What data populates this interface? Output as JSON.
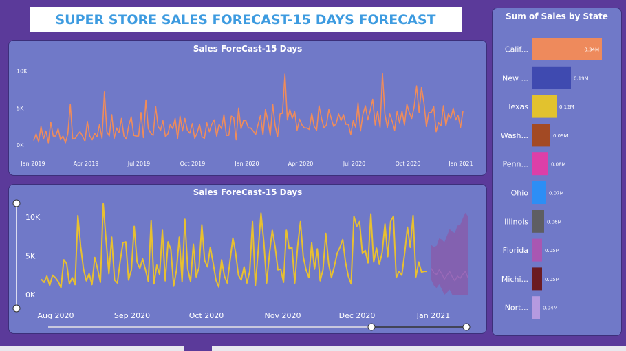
{
  "page_title": "SUPER STORE SALES FORECAST-15 DAYS FORECAST",
  "colors": {
    "background": "#5b3a9a",
    "panel": "#7079c8",
    "title_text": "#3d9be0",
    "line_top": "#f08c5a",
    "line_bottom": "#e8c030",
    "forecast_band": "#8a5aa8"
  },
  "chart_data": [
    {
      "type": "line",
      "title": "Sales ForeCast-15 Days",
      "xlabel": "",
      "ylabel": "",
      "x_ticks": [
        "Jan 2019",
        "Apr 2019",
        "Jul 2019",
        "Oct 2019",
        "Jan 2020",
        "Apr 2020",
        "Jul 2020",
        "Oct 2020",
        "Jan 2021"
      ],
      "y_ticks": [
        "0K",
        "5K",
        "10K"
      ],
      "ylim": [
        0,
        11000
      ],
      "series": [
        {
          "values": [
            600,
            1500,
            400,
            2500,
            800,
            1900,
            300,
            3100,
            1200,
            1200,
            2200,
            700,
            1200,
            300,
            1500,
            5500,
            800,
            900,
            1400,
            1800,
            1200,
            500,
            3200,
            1200,
            700,
            1600,
            1100,
            2800,
            900,
            7200,
            1800,
            1200,
            4100,
            900,
            2300,
            1700,
            3600,
            1200,
            800,
            2700,
            3800,
            1300,
            1200,
            1200,
            4400,
            1000,
            6100,
            2200,
            1600,
            1300,
            5200,
            2500,
            2000,
            3300,
            1100,
            1500,
            2800,
            2200,
            3600,
            900,
            3900,
            1900,
            3600,
            2000,
            1600,
            2900,
            900,
            1600,
            2800,
            1100,
            900,
            3000,
            1800,
            2800,
            3400,
            1200,
            2800,
            2200,
            4100,
            1300,
            1300,
            3900,
            3700,
            700,
            5000,
            2200,
            3300,
            3300,
            2300,
            2300,
            1900,
            1400,
            2800,
            4000,
            1400,
            4800,
            3300,
            1300,
            5500,
            2600,
            1100,
            4200,
            4300,
            9600,
            3400,
            4800,
            3600,
            4500,
            2000,
            3500,
            2700,
            2300,
            2300,
            2100,
            4300,
            2500,
            2000,
            5300,
            3600,
            2300,
            2700,
            4800,
            3600,
            2500,
            2900,
            4200,
            3300,
            4100,
            2800,
            2800,
            1400,
            3300,
            2400,
            5700,
            1900,
            4200,
            5300,
            3400,
            4700,
            6200,
            2700,
            4600,
            2400,
            9700,
            4200,
            2400,
            4200,
            3200,
            2000,
            4600,
            3000,
            4600,
            2700,
            5500,
            4400,
            3600,
            5200,
            8000,
            4400,
            7800,
            5700,
            2500,
            4400,
            4400,
            5200,
            1800,
            3000,
            2600,
            5300,
            2600,
            4200,
            3600,
            5000,
            3400,
            4000,
            2400,
            4600
          ]
        }
      ]
    },
    {
      "type": "line",
      "title": "Sales ForeCast-15 Days",
      "xlabel": "",
      "ylabel": "",
      "x_ticks": [
        "Aug 2020",
        "Sep 2020",
        "Oct 2020",
        "Nov 2020",
        "Dec 2020",
        "Jan 2021"
      ],
      "y_ticks": [
        "0K",
        "5K",
        "10K"
      ],
      "ylim": [
        0,
        11500
      ],
      "series": [
        {
          "values": [
            2000,
            1600,
            2400,
            1200,
            2500,
            2200,
            1700,
            900,
            4500,
            4000,
            1400,
            2200,
            1300,
            10200,
            6200,
            3300,
            1800,
            2700,
            1300,
            4800,
            3300,
            1600,
            11700,
            7000,
            2700,
            7400,
            1900,
            1500,
            4300,
            6700,
            6800,
            1900,
            3200,
            8800,
            4200,
            3400,
            4600,
            3200,
            1700,
            9500,
            1400,
            3800,
            2600,
            8300,
            1800,
            6800,
            5800,
            1100,
            3200,
            7400,
            1700,
            9700,
            3300,
            1700,
            6500,
            2300,
            3500,
            9000,
            4400,
            3600,
            6100,
            4100,
            1900,
            1000,
            4500,
            2400,
            1500,
            4400,
            7300,
            5400,
            2500,
            1900,
            3600,
            1500,
            3000,
            9400,
            1200,
            5700,
            10500,
            6800,
            1500,
            5300,
            8300,
            6200,
            3200,
            3300,
            1600,
            8300,
            5900,
            6100,
            1500,
            6200,
            9400,
            4900,
            3200,
            2200,
            6700,
            3300,
            5900,
            1800,
            3200,
            7900,
            4000,
            2200,
            3600,
            5300,
            6100,
            7100,
            4200,
            2400,
            1400,
            10100,
            8800,
            9400,
            5300,
            5700,
            4100,
            10400,
            4200,
            6000,
            3900,
            5400,
            9100,
            4900,
            9400,
            10100,
            2200,
            3000,
            2500,
            5300,
            8700,
            6100,
            10200,
            2300,
            4200,
            2900,
            3000,
            3000
          ]
        },
        {
          "values": [
            3400,
            2800,
            2600,
            3200,
            2700,
            2000,
            2500,
            3000,
            2300,
            1800,
            2400,
            2100,
            2600,
            3000,
            2200
          ]
        }
      ]
    },
    {
      "type": "bar",
      "orientation": "horizontal",
      "title": "Sum of Sales by State",
      "xlabel": "",
      "ylabel": "",
      "categories": [
        "Calif...",
        "New ...",
        "Texas",
        "Wash...",
        "Penn...",
        "Ohio",
        "Illinois",
        "Florida",
        "Michi...",
        "Nort..."
      ],
      "values": [
        0.34,
        0.19,
        0.12,
        0.09,
        0.08,
        0.07,
        0.06,
        0.05,
        0.05,
        0.04
      ],
      "value_labels": [
        "0.34M",
        "0.19M",
        "0.12M",
        "0.09M",
        "0.08M",
        "0.07M",
        "0.06M",
        "0.05M",
        "0.05M",
        "0.04M"
      ],
      "bar_colors": [
        "#ee8a5c",
        "#3f4ab0",
        "#e2c22e",
        "#a34a24",
        "#dd3fa8",
        "#2d8ef5",
        "#5e5e62",
        "#a857b2",
        "#6b1b22",
        "#b59ae0"
      ],
      "xlim": [
        0,
        0.36
      ]
    }
  ]
}
